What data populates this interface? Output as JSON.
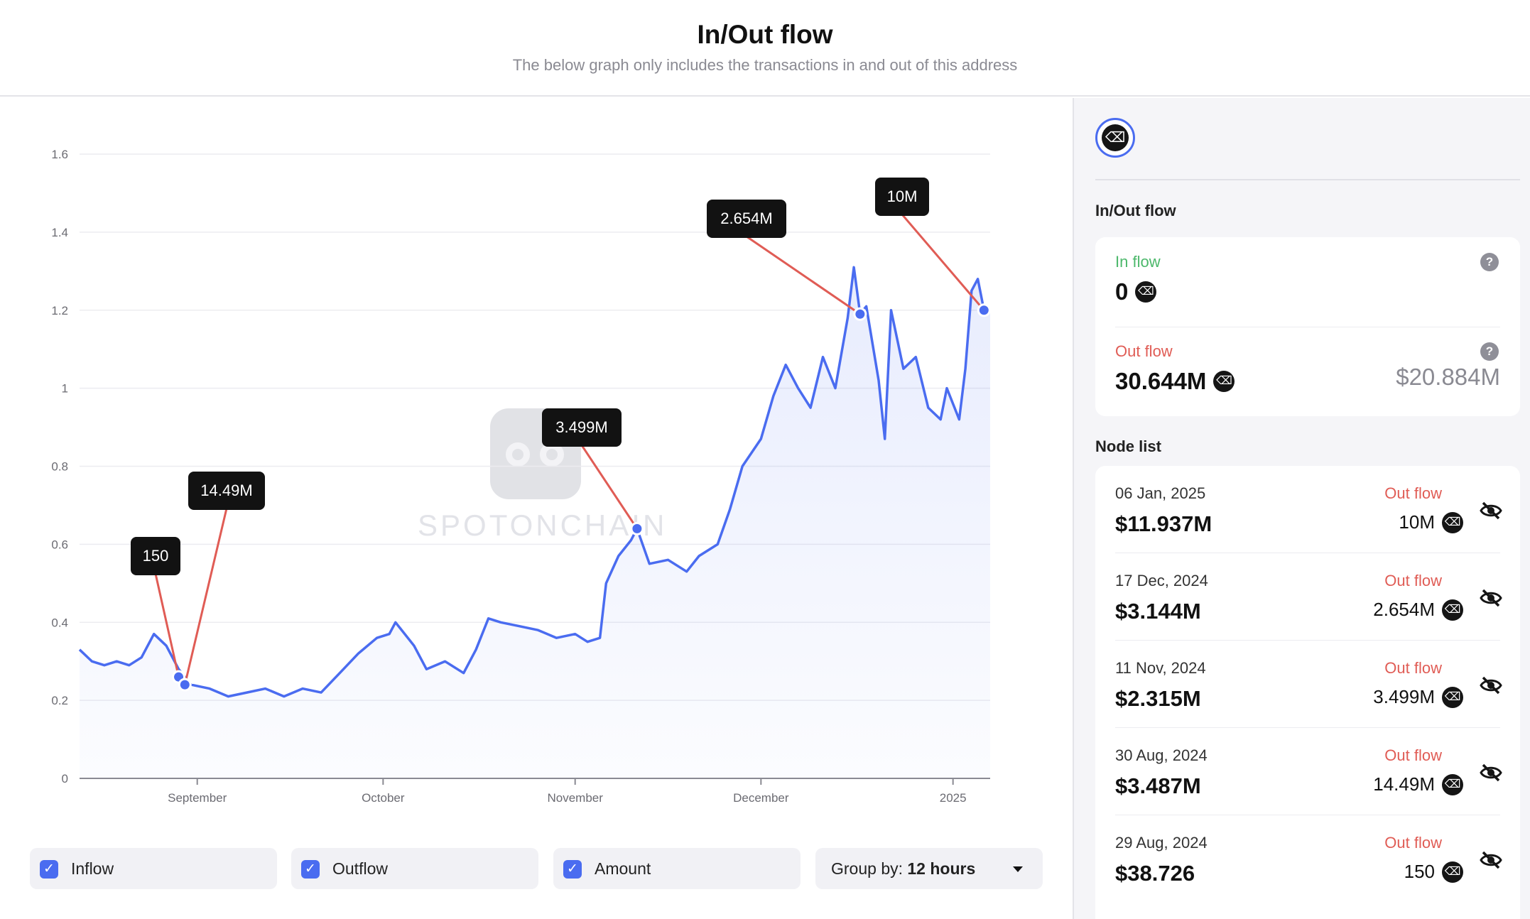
{
  "header": {
    "title": "In/Out flow",
    "subtitle": "The below graph only includes the transactions in and out of this address"
  },
  "watermark": "SPOTONCHAIN",
  "colors": {
    "accent": "#4a6cf0",
    "inflow": "#4cb86b",
    "outflow": "#e05c55"
  },
  "chart_data": {
    "type": "line",
    "x_labels": [
      "September",
      "October",
      "November",
      "December",
      "2025"
    ],
    "y_ticks": [
      0,
      0.2,
      0.4,
      0.6,
      0.8,
      1,
      1.2,
      1.4,
      1.6
    ],
    "y_tick_labels": [
      "0",
      "0.2",
      "0.4",
      "0.6",
      "0.8",
      "1",
      "1.2",
      "1.4",
      "1.6"
    ],
    "ylim": [
      0,
      1.6
    ],
    "xlim": [
      "2024-08-13",
      "2025-01-07"
    ],
    "grid": true,
    "series": [
      {
        "color": "#4a6cf0",
        "points": [
          [
            "2024-08-13",
            0.33
          ],
          [
            "2024-08-15",
            0.3
          ],
          [
            "2024-08-17",
            0.29
          ],
          [
            "2024-08-19",
            0.3
          ],
          [
            "2024-08-21",
            0.29
          ],
          [
            "2024-08-23",
            0.31
          ],
          [
            "2024-08-25",
            0.37
          ],
          [
            "2024-08-27",
            0.34
          ],
          [
            "2024-08-29",
            0.28
          ],
          [
            "2024-08-30",
            0.26
          ],
          [
            "2024-08-31",
            0.24
          ],
          [
            "2024-09-03",
            0.23
          ],
          [
            "2024-09-06",
            0.21
          ],
          [
            "2024-09-09",
            0.22
          ],
          [
            "2024-09-12",
            0.23
          ],
          [
            "2024-09-15",
            0.21
          ],
          [
            "2024-09-18",
            0.23
          ],
          [
            "2024-09-21",
            0.22
          ],
          [
            "2024-09-24",
            0.27
          ],
          [
            "2024-09-27",
            0.32
          ],
          [
            "2024-09-30",
            0.36
          ],
          [
            "2024-10-02",
            0.37
          ],
          [
            "2024-10-03",
            0.4
          ],
          [
            "2024-10-06",
            0.34
          ],
          [
            "2024-10-08",
            0.28
          ],
          [
            "2024-10-11",
            0.3
          ],
          [
            "2024-10-14",
            0.27
          ],
          [
            "2024-10-16",
            0.33
          ],
          [
            "2024-10-18",
            0.41
          ],
          [
            "2024-10-20",
            0.4
          ],
          [
            "2024-10-23",
            0.39
          ],
          [
            "2024-10-26",
            0.38
          ],
          [
            "2024-10-29",
            0.36
          ],
          [
            "2024-11-01",
            0.37
          ],
          [
            "2024-11-03",
            0.35
          ],
          [
            "2024-11-05",
            0.36
          ],
          [
            "2024-11-06",
            0.5
          ],
          [
            "2024-11-08",
            0.57
          ],
          [
            "2024-11-10",
            0.61
          ],
          [
            "2024-11-11",
            0.64
          ],
          [
            "2024-11-13",
            0.55
          ],
          [
            "2024-11-16",
            0.56
          ],
          [
            "2024-11-19",
            0.53
          ],
          [
            "2024-11-21",
            0.57
          ],
          [
            "2024-11-24",
            0.6
          ],
          [
            "2024-11-26",
            0.69
          ],
          [
            "2024-11-28",
            0.8
          ],
          [
            "2024-12-01",
            0.87
          ],
          [
            "2024-12-03",
            0.98
          ],
          [
            "2024-12-05",
            1.06
          ],
          [
            "2024-12-07",
            1.0
          ],
          [
            "2024-12-09",
            0.95
          ],
          [
            "2024-12-11",
            1.08
          ],
          [
            "2024-12-13",
            1.0
          ],
          [
            "2024-12-15",
            1.18
          ],
          [
            "2024-12-16",
            1.31
          ],
          [
            "2024-12-17",
            1.19
          ],
          [
            "2024-12-18",
            1.21
          ],
          [
            "2024-12-20",
            1.02
          ],
          [
            "2024-12-21",
            0.87
          ],
          [
            "2024-12-22",
            1.2
          ],
          [
            "2024-12-24",
            1.05
          ],
          [
            "2024-12-26",
            1.08
          ],
          [
            "2024-12-28",
            0.95
          ],
          [
            "2024-12-30",
            0.92
          ],
          [
            "2024-12-31",
            1.0
          ],
          [
            "2025-01-01",
            0.96
          ],
          [
            "2025-01-02",
            0.92
          ],
          [
            "2025-01-03",
            1.05
          ],
          [
            "2025-01-04",
            1.25
          ],
          [
            "2025-01-05",
            1.28
          ],
          [
            "2025-01-06",
            1.2
          ],
          [
            "2025-01-07",
            1.2
          ]
        ]
      }
    ],
    "annotations": [
      {
        "label": "150",
        "x": "2024-08-29",
        "y": 0.26
      },
      {
        "label": "14.49M",
        "x": "2024-08-30",
        "y": 0.24
      },
      {
        "label": "3.499M",
        "x": "2024-11-11",
        "y": 0.64
      },
      {
        "label": "2.654M",
        "x": "2024-12-17",
        "y": 1.19
      },
      {
        "label": "10M",
        "x": "2025-01-06",
        "y": 1.2
      }
    ]
  },
  "controls": {
    "inflow_label": "Inflow",
    "outflow_label": "Outflow",
    "amount_label": "Amount",
    "group_prefix": "Group by:",
    "group_value": "12 hours",
    "check_glyph": "✓"
  },
  "side": {
    "token_glyph": "⌫",
    "flow_title": "In/Out flow",
    "in_label": "In flow",
    "in_value": "0",
    "out_label": "Out flow",
    "out_value": "30.644M",
    "out_usd": "$20.884M",
    "help_glyph": "?",
    "node_title": "Node list",
    "nodes": [
      {
        "date": "06 Jan, 2025",
        "usd": "$11.937M",
        "type": "Out flow",
        "amount": "10M"
      },
      {
        "date": "17 Dec, 2024",
        "usd": "$3.144M",
        "type": "Out flow",
        "amount": "2.654M"
      },
      {
        "date": "11 Nov, 2024",
        "usd": "$2.315M",
        "type": "Out flow",
        "amount": "3.499M"
      },
      {
        "date": "30 Aug, 2024",
        "usd": "$3.487M",
        "type": "Out flow",
        "amount": "14.49M"
      },
      {
        "date": "29 Aug, 2024",
        "usd": "$38.726",
        "type": "Out flow",
        "amount": "150"
      }
    ]
  }
}
